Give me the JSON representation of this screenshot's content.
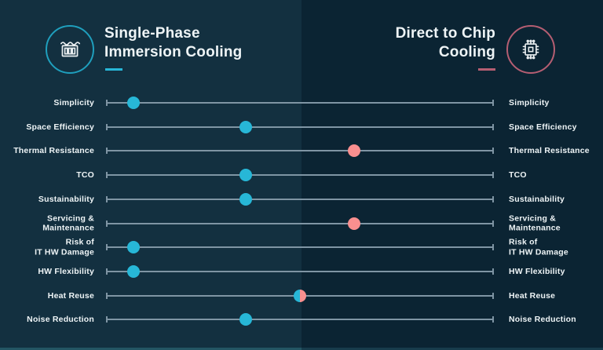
{
  "header": {
    "left": {
      "title_line1": "Single-Phase",
      "title_line2": "Immersion Cooling",
      "icon": "immersion-tank-icon"
    },
    "right": {
      "title_line1": "Direct to Chip",
      "title_line2": "Cooling",
      "icon": "cpu-chip-icon"
    }
  },
  "colors": {
    "left_background": "#133040",
    "right_background": "#0b2433",
    "teal_dot": "#27b7d7",
    "pink_dot": "#f98f8f",
    "teal_ring": "#1f9fbd",
    "pink_ring": "#b55e72",
    "track": "#7f95a4",
    "text": "#eef4f6"
  },
  "chart_data": {
    "type": "scatter",
    "subtype": "comparison-dot-plot",
    "title": "Single-Phase Immersion Cooling vs Direct to Chip Cooling",
    "left_series": "Single-Phase Immersion Cooling",
    "right_series": "Direct to Chip Cooling",
    "axis_note": "position_pct: 0 = far left (immersion side), 100 = far right (direct-to-chip side); dot color marks which technology the attribute leans toward",
    "categories": [
      "Simplicity",
      "Space Efficiency",
      "Thermal Resistance",
      "TCO",
      "Sustainability",
      "Servicing & Maintenance",
      "Risk of IT HW Damage",
      "HW Flexibility",
      "Heat Reuse",
      "Noise Reduction"
    ],
    "rows": [
      {
        "label_lines": [
          "Simplicity"
        ],
        "position_pct": 7,
        "dot": "teal"
      },
      {
        "label_lines": [
          "Space Efficiency"
        ],
        "position_pct": 36,
        "dot": "teal"
      },
      {
        "label_lines": [
          "Thermal Resistance"
        ],
        "position_pct": 64,
        "dot": "pink"
      },
      {
        "label_lines": [
          "TCO"
        ],
        "position_pct": 36,
        "dot": "teal"
      },
      {
        "label_lines": [
          "Sustainability"
        ],
        "position_pct": 36,
        "dot": "teal"
      },
      {
        "label_lines": [
          "Servicing &",
          "Maintenance"
        ],
        "position_pct": 64,
        "dot": "pink"
      },
      {
        "label_lines": [
          "Risk of",
          "IT HW Damage"
        ],
        "position_pct": 7,
        "dot": "teal"
      },
      {
        "label_lines": [
          "HW Flexibility"
        ],
        "position_pct": 7,
        "dot": "teal"
      },
      {
        "label_lines": [
          "Heat Reuse"
        ],
        "position_pct": 50,
        "dot": "split"
      },
      {
        "label_lines": [
          "Noise Reduction"
        ],
        "position_pct": 36,
        "dot": "teal"
      }
    ]
  }
}
